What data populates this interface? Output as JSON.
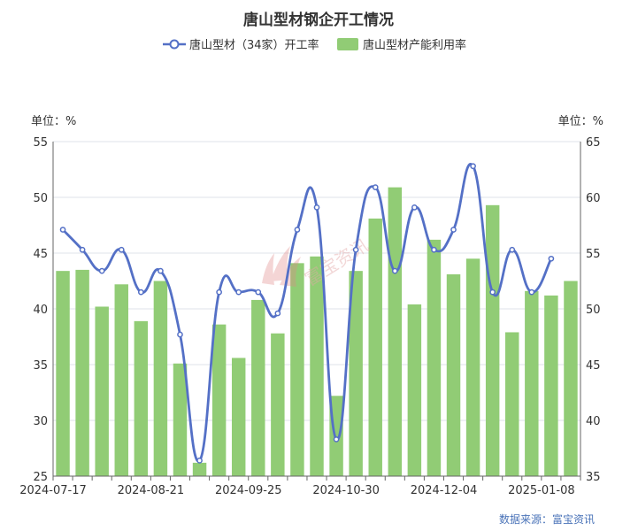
{
  "chart_data": {
    "type": "bar",
    "title": "唐山型材钢企开工情况",
    "legend": [
      "唐山型材（34家）开工率",
      "唐山型材产能利用率"
    ],
    "left_unit": "单位：%",
    "right_unit": "单位：%",
    "left_axis": {
      "min": 25,
      "max": 55,
      "ticks": [
        25,
        30,
        35,
        40,
        45,
        50,
        55
      ]
    },
    "right_axis": {
      "min": 35,
      "max": 65,
      "ticks": [
        35,
        40,
        45,
        50,
        55,
        60,
        65
      ]
    },
    "x_tick_labels": [
      "2024-07-17",
      "2024-08-21",
      "2024-09-25",
      "2024-10-30",
      "2024-12-04",
      "2025-01-08"
    ],
    "bar_count": 27,
    "x_tick_bar_index": [
      0,
      5,
      10,
      15,
      20,
      25
    ],
    "series": [
      {
        "name": "唐山型材（34家）开工率",
        "type": "line",
        "axis": "left",
        "color": "#5470c6",
        "values": [
          47.1,
          45.3,
          43.4,
          45.3,
          41.5,
          43.4,
          37.7,
          26.4,
          41.5,
          41.5,
          41.5,
          39.6,
          47.1,
          49.1,
          28.3,
          45.3,
          50.9,
          43.4,
          49.1,
          45.3,
          47.1,
          52.8,
          41.5,
          45.3,
          41.5,
          44.5
        ]
      },
      {
        "name": "唐山型材产能利用率",
        "type": "bar",
        "axis": "right",
        "color": "#91cc75",
        "values": [
          53.4,
          53.5,
          50.2,
          52.2,
          48.9,
          52.5,
          45.1,
          36.2,
          48.6,
          45.6,
          50.8,
          47.8,
          54.1,
          54.7,
          42.2,
          53.4,
          58.1,
          60.9,
          50.4,
          56.2,
          53.1,
          54.5,
          59.3,
          47.9,
          51.6,
          51.2,
          52.5
        ]
      }
    ],
    "source": "数据来源：富宝资讯",
    "watermark": "富宝资讯"
  }
}
